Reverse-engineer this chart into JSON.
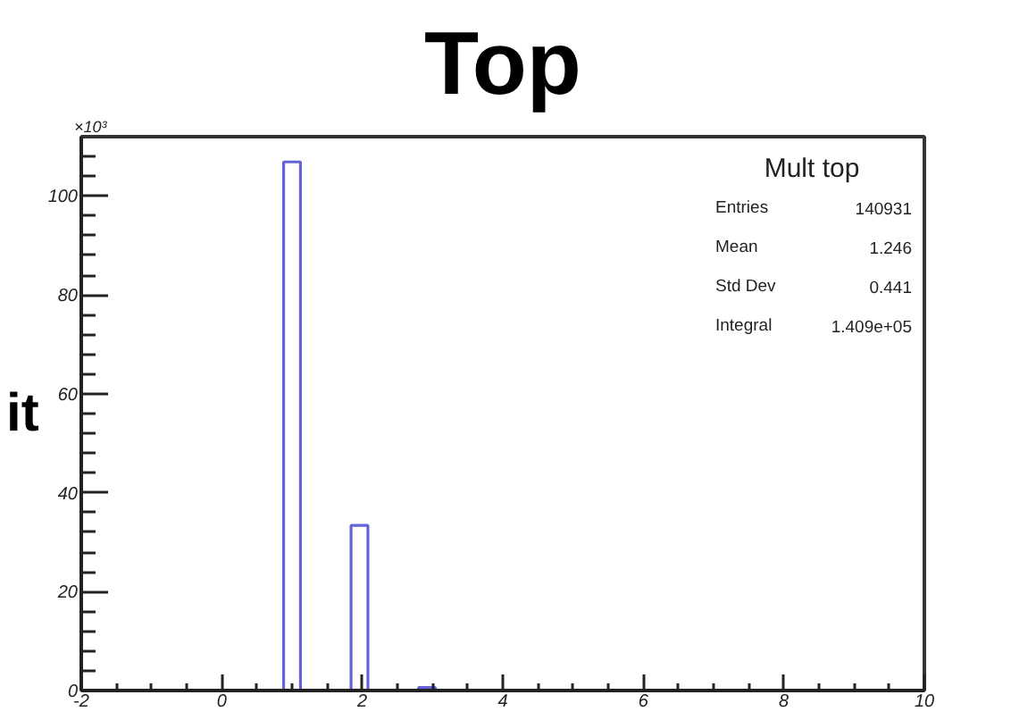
{
  "chart_data": {
    "type": "histogram",
    "title": "Top",
    "ylabel": "it",
    "bins": [
      0.88,
      1.12,
      1.36,
      1.6,
      1.84,
      2.08,
      2.32,
      2.56,
      2.8,
      3.04
    ],
    "values": [
      106.9,
      0,
      0,
      0,
      33.4,
      0,
      0,
      0,
      0.6
    ],
    "color": "#6464d8",
    "xlim": [
      -2,
      10
    ],
    "ylim": [
      0,
      112
    ],
    "xticks": [
      -2,
      {
        "value": -1.5,
        "label": null
      },
      {
        "value": -1,
        "label": null
      },
      {
        "value": -0.5,
        "label": null
      },
      0,
      {
        "value": 0.5,
        "label": null
      },
      {
        "value": 1,
        "label": null
      },
      {
        "value": 1.5,
        "label": null
      },
      2,
      {
        "value": 2.5,
        "label": null
      },
      {
        "value": 3,
        "label": null
      },
      {
        "value": 3.5,
        "label": null
      },
      4,
      {
        "value": 4.5,
        "label": null
      },
      {
        "value": 5,
        "label": null
      },
      {
        "value": 5.5,
        "label": null
      },
      6,
      {
        "value": 6.5,
        "label": null
      },
      {
        "value": 7,
        "label": null
      },
      {
        "value": 7.5,
        "label": null
      },
      8,
      {
        "value": 8.5,
        "label": null
      },
      {
        "value": 9,
        "label": null
      },
      {
        "value": 9.5,
        "label": null
      },
      10
    ],
    "yticks": [
      0,
      {
        "value": 4,
        "label": null
      },
      {
        "value": 8,
        "label": null
      },
      {
        "value": 12,
        "label": null
      },
      {
        "value": 16,
        "label": null
      },
      20,
      {
        "value": 24,
        "label": null
      },
      {
        "value": 28,
        "label": null
      },
      {
        "value": 32,
        "label": null
      },
      {
        "value": 36,
        "label": null
      },
      40,
      {
        "value": 44,
        "label": null
      },
      {
        "value": 48,
        "label": null
      },
      {
        "value": 52,
        "label": null
      },
      {
        "value": 56,
        "label": null
      },
      60,
      {
        "value": 64,
        "label": null
      },
      {
        "value": 68,
        "label": null
      },
      {
        "value": 72,
        "label": null
      },
      {
        "value": 76,
        "label": null
      },
      80,
      {
        "value": 84,
        "label": null
      },
      {
        "value": 88,
        "label": null
      },
      {
        "value": 92,
        "label": null
      },
      {
        "value": 96,
        "label": null
      },
      100,
      {
        "value": 104,
        "label": null
      },
      {
        "value": 108,
        "label": null
      }
    ],
    "annotations": [
      "×10³",
      "Mult top",
      "Entries",
      "140931",
      "Mean",
      "1.246",
      "Std Dev",
      "0.441",
      "Integral",
      "1.409e+05"
    ]
  }
}
